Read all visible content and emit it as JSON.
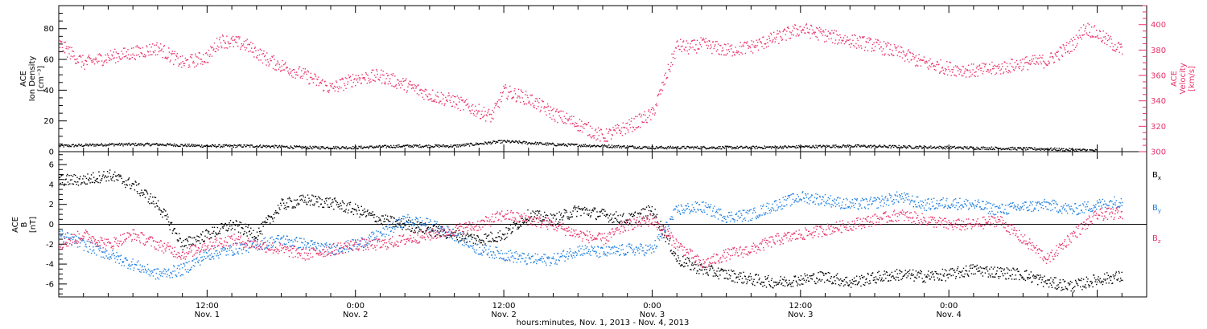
{
  "chart_data": [
    {
      "type": "scatter",
      "panel": "plasma",
      "ylabel_left": [
        "ACE",
        "Ion Density",
        "[cm⁻³]"
      ],
      "ylabel_right": [
        "ACE",
        "Velocity",
        "[km/s]"
      ],
      "y_left_ticks": [
        "0",
        "20",
        "40",
        "60",
        "80"
      ],
      "y_left_range": [
        0,
        95
      ],
      "y_right_ticks": [
        "300",
        "320",
        "340",
        "360",
        "380",
        "400"
      ],
      "y_right_range": [
        300,
        415
      ],
      "x_range_hours": [
        0,
        88
      ],
      "series": [
        {
          "name": "Ion Density",
          "color": "#000000",
          "hours": [
            0,
            4,
            8,
            12,
            16,
            20,
            24,
            28,
            32,
            36,
            40,
            44,
            48,
            52,
            56,
            64,
            72,
            80,
            84
          ],
          "values": [
            4,
            5,
            5,
            4,
            4,
            3,
            3,
            4,
            4,
            7,
            5,
            4,
            3,
            3,
            3,
            4,
            3,
            2,
            1
          ]
        },
        {
          "name": "Velocity",
          "color": "#e8336b",
          "hours": [
            0,
            2,
            4,
            6,
            8,
            10,
            12,
            13,
            15,
            17,
            20,
            22,
            24,
            26,
            28,
            30,
            32,
            35,
            36,
            38,
            40,
            42,
            44,
            46,
            48,
            50,
            51,
            52,
            54,
            56,
            58,
            60,
            62,
            64,
            66,
            68,
            70,
            72,
            74,
            76,
            78,
            80,
            82,
            83,
            84,
            86
          ],
          "values": [
            385,
            370,
            375,
            378,
            382,
            370,
            375,
            388,
            385,
            372,
            360,
            350,
            358,
            360,
            353,
            345,
            340,
            328,
            348,
            342,
            330,
            322,
            312,
            320,
            330,
            384,
            382,
            385,
            380,
            383,
            390,
            397,
            392,
            388,
            384,
            378,
            370,
            366,
            364,
            366,
            370,
            372,
            385,
            398,
            393,
            380
          ]
        }
      ]
    },
    {
      "type": "scatter",
      "panel": "magnetic",
      "ylabel_left": [
        "ACE",
        "B",
        "[nT]"
      ],
      "y_ticks": [
        "-6",
        "-4",
        "-2",
        "0",
        "2",
        "4",
        "6"
      ],
      "y_range": [
        -7.3,
        7.3
      ],
      "x_range_hours": [
        0,
        88
      ],
      "series": [
        {
          "name": "Bx",
          "label_main": "B",
          "label_sub": "x",
          "color": "#000000",
          "hours": [
            0,
            2,
            4,
            6,
            8,
            10,
            12,
            14,
            16,
            18,
            20,
            22,
            24,
            26,
            28,
            30,
            32,
            34,
            36,
            38,
            40,
            42,
            44,
            46,
            48,
            50,
            52,
            54,
            56,
            58,
            60,
            62,
            64,
            66,
            68,
            70,
            72,
            74,
            76,
            78,
            80,
            82,
            84,
            86
          ],
          "values": [
            4.5,
            4.5,
            5,
            4,
            2,
            -2,
            -1,
            0,
            -1,
            2,
            2.5,
            2.2,
            1.5,
            0.5,
            0,
            -0.5,
            -1,
            -1.5,
            -1,
            1,
            0.5,
            1.5,
            1,
            0.5,
            1.5,
            -3.5,
            -4.5,
            -5,
            -5.5,
            -5.8,
            -5.5,
            -5.2,
            -5.8,
            -5.3,
            -5,
            -5.2,
            -5,
            -4.5,
            -4.8,
            -5,
            -5.8,
            -6.2,
            -5.5,
            -5.2
          ]
        },
        {
          "name": "By",
          "label_main": "B",
          "label_sub": "y",
          "color": "#1f7fe0",
          "hours": [
            0,
            2,
            4,
            6,
            8,
            10,
            12,
            14,
            16,
            18,
            20,
            22,
            24,
            26,
            28,
            30,
            32,
            34,
            36,
            38,
            40,
            42,
            44,
            46,
            48,
            50,
            52,
            54,
            56,
            58,
            60,
            62,
            64,
            66,
            68,
            70,
            72,
            74,
            76,
            78,
            80,
            82,
            84,
            86
          ],
          "values": [
            -1,
            -2,
            -3,
            -4,
            -5,
            -4.5,
            -3,
            -2.5,
            -2,
            -1.5,
            -2,
            -2.5,
            -2,
            -1,
            0.5,
            0,
            -1,
            -2.5,
            -3,
            -3.5,
            -3.5,
            -2.5,
            -2.8,
            -2.5,
            -2.5,
            1.5,
            1.8,
            0.8,
            1,
            2,
            2.8,
            2.5,
            2,
            2.2,
            2.8,
            2,
            2.2,
            2,
            1.5,
            1.8,
            2,
            1.5,
            2,
            2.4
          ]
        },
        {
          "name": "Bz",
          "label_main": "B",
          "label_sub": "z",
          "color": "#e8336b",
          "hours": [
            0,
            2,
            4,
            6,
            8,
            10,
            12,
            14,
            16,
            18,
            20,
            22,
            24,
            26,
            28,
            30,
            32,
            34,
            36,
            38,
            40,
            42,
            44,
            46,
            48,
            50,
            52,
            54,
            56,
            58,
            60,
            62,
            64,
            66,
            68,
            70,
            72,
            74,
            76,
            78,
            80,
            82,
            84,
            86
          ],
          "values": [
            -2,
            -1,
            -2,
            -1,
            -2,
            -3,
            -2,
            -1.5,
            -2,
            -2.5,
            -3,
            -2.5,
            -2,
            -2,
            -1.5,
            -1,
            -0.5,
            0,
            1,
            0.5,
            0,
            -1,
            -1.5,
            0,
            0.5,
            -2,
            -4,
            -3,
            -2.5,
            -1.5,
            -1,
            -0.5,
            0,
            0.5,
            1,
            0.5,
            0,
            0,
            0.5,
            -1.5,
            -3.5,
            -1,
            1,
            1.2
          ]
        }
      ]
    }
  ],
  "x_axis": {
    "tick_labels": [
      {
        "hour": 12,
        "time": "12:00",
        "date": "Nov. 1"
      },
      {
        "hour": 24,
        "time": "0:00",
        "date": "Nov. 2"
      },
      {
        "hour": 36,
        "time": "12:00",
        "date": "Nov. 2"
      },
      {
        "hour": 48,
        "time": "0:00",
        "date": "Nov. 3"
      },
      {
        "hour": 60,
        "time": "12:00",
        "date": "Nov. 3"
      },
      {
        "hour": 72,
        "time": "0:00",
        "date": "Nov. 4"
      }
    ],
    "title": "hours:minutes, Nov.  1, 2013 - Nov.  4, 2013"
  }
}
